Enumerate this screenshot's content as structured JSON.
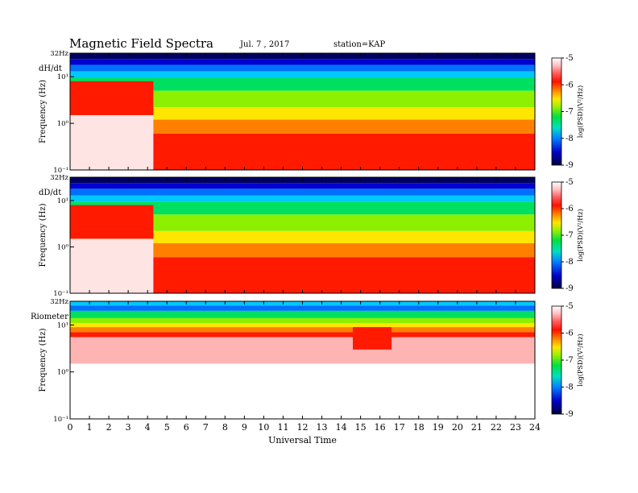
{
  "header": {
    "title": "Magnetic Field Spectra",
    "date": "Jul.  7  , 2017",
    "station": "station=KAP"
  },
  "colors": {
    "scale": [
      "#000060",
      "#0000d0",
      "#0070ff",
      "#00c8ff",
      "#00e060",
      "#8cf000",
      "#ffe600",
      "#ff8000",
      "#ff1a00",
      "#e60000",
      "#ffb4b4",
      "#ffffff"
    ]
  },
  "chart_data": [
    {
      "type": "heatmap",
      "panel_label": "dH/dt",
      "ylabel": "Frequency (Hz)",
      "y_scale": "log",
      "ylim": [
        0.1,
        32
      ],
      "y_ticks": [
        "10⁻¹",
        "10⁰",
        "10¹",
        "32Hz"
      ],
      "xlim": [
        0,
        24
      ],
      "colorbar": {
        "label": "log(PSD)(V²/Hz)",
        "range": [
          -9,
          -5
        ],
        "ticks": [
          "-5",
          "-6",
          "-7",
          "-8",
          "-9"
        ]
      }
    },
    {
      "type": "heatmap",
      "panel_label": "dD/dt",
      "ylabel": "Frequency (Hz)",
      "y_scale": "log",
      "ylim": [
        0.1,
        32
      ],
      "y_ticks": [
        "10⁻¹",
        "10⁰",
        "10¹",
        "32Hz"
      ],
      "xlim": [
        0,
        24
      ],
      "colorbar": {
        "label": "log(PSD)(V²/Hz)",
        "range": [
          -9,
          -5
        ],
        "ticks": [
          "-5",
          "-6",
          "-7",
          "-8",
          "-9"
        ]
      }
    },
    {
      "type": "heatmap",
      "panel_label": "Riometer",
      "ylabel": "Frequency (Hz)",
      "y_scale": "log",
      "ylim": [
        0.1,
        32
      ],
      "y_ticks": [
        "10⁻¹",
        "10⁰",
        "10¹",
        "32Hz"
      ],
      "xlim": [
        0,
        24
      ],
      "xlabel": "Universal Time",
      "x_ticks": [
        "0",
        "1",
        "2",
        "3",
        "4",
        "5",
        "6",
        "7",
        "8",
        "9",
        "10",
        "11",
        "12",
        "13",
        "14",
        "15",
        "16",
        "17",
        "18",
        "19",
        "20",
        "21",
        "22",
        "23",
        "24"
      ],
      "colorbar": {
        "label": "log(PSD)(V²/Hz)",
        "range": [
          -9,
          -5
        ],
        "ticks": [
          "-5",
          "-6",
          "-7",
          "-8",
          "-9"
        ]
      }
    }
  ]
}
